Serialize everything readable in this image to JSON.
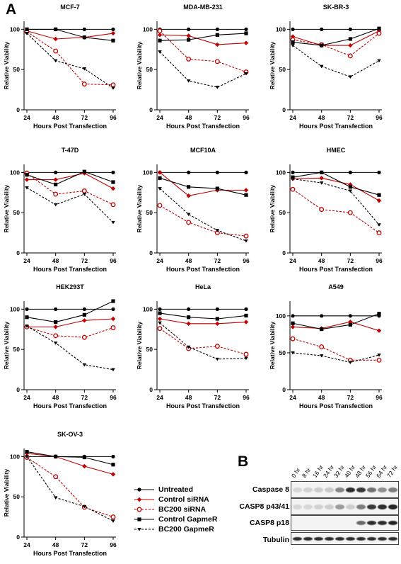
{
  "panel_labels": {
    "a": "A",
    "b": "B"
  },
  "legend": [
    {
      "label": "Untreated",
      "color": "#000000",
      "dash": false,
      "marker": "circle-filled"
    },
    {
      "label": "Control siRNA",
      "color": "#c00000",
      "dash": false,
      "marker": "diamond-filled"
    },
    {
      "label": "BC200 siRNA",
      "color": "#c00000",
      "dash": true,
      "marker": "circle-open"
    },
    {
      "label": "Control GapmeR",
      "color": "#000000",
      "dash": false,
      "marker": "square-filled"
    },
    {
      "label": "BC200 GapmeR",
      "color": "#000000",
      "dash": true,
      "marker": "triangle-down"
    }
  ],
  "chart_data": [
    {
      "type": "line",
      "title": "MCF-7",
      "xlabel": "Hours Post Transfection",
      "ylabel": "Relative  Viability",
      "x": [
        24,
        48,
        72,
        96
      ],
      "ylim": [
        0,
        110
      ],
      "yticks": [
        0,
        50,
        100
      ],
      "series": [
        {
          "name": "Untreated",
          "values": [
            100,
            100,
            100,
            100
          ]
        },
        {
          "name": "Control siRNA",
          "values": [
            98,
            88,
            90,
            95
          ]
        },
        {
          "name": "BC200 siRNA",
          "values": [
            97,
            73,
            32,
            31
          ]
        },
        {
          "name": "Control GapmeR",
          "values": [
            100,
            100,
            90,
            86
          ]
        },
        {
          "name": "BC200 GapmeR",
          "values": [
            95,
            61,
            51,
            27
          ]
        }
      ]
    },
    {
      "type": "line",
      "title": "MDA-MB-231",
      "xlabel": "Hours Post Transfection",
      "ylabel": "Relative  Viability",
      "x": [
        24,
        48,
        72,
        96
      ],
      "ylim": [
        0,
        110
      ],
      "yticks": [
        0,
        50,
        100
      ],
      "series": [
        {
          "name": "Untreated",
          "values": [
            100,
            100,
            100,
            100
          ]
        },
        {
          "name": "Control siRNA",
          "values": [
            93,
            92,
            81,
            83
          ]
        },
        {
          "name": "BC200 siRNA",
          "values": [
            98,
            63,
            60,
            47
          ]
        },
        {
          "name": "Control GapmeR",
          "values": [
            86,
            87,
            93,
            95
          ]
        },
        {
          "name": "BC200 GapmeR",
          "values": [
            72,
            36,
            28,
            45
          ]
        }
      ]
    },
    {
      "type": "line",
      "title": "SK-BR-3",
      "xlabel": "Hours Post Transfection",
      "ylabel": "Relative  Viability",
      "x": [
        24,
        48,
        72,
        96
      ],
      "ylim": [
        0,
        110
      ],
      "yticks": [
        0,
        50,
        100
      ],
      "series": [
        {
          "name": "Untreated",
          "values": [
            100,
            100,
            100,
            100
          ]
        },
        {
          "name": "Control siRNA",
          "values": [
            91,
            80,
            80,
            98
          ]
        },
        {
          "name": "BC200 siRNA",
          "values": [
            87,
            81,
            67,
            95
          ]
        },
        {
          "name": "Control GapmeR",
          "values": [
            84,
            80,
            88,
            101
          ]
        },
        {
          "name": "BC200 GapmeR",
          "values": [
            80,
            54,
            41,
            61
          ]
        }
      ]
    },
    {
      "type": "line",
      "title": "T-47D",
      "xlabel": "Hours Post Transfection",
      "ylabel": "Relative  Viability",
      "x": [
        24,
        48,
        72,
        96
      ],
      "ylim": [
        0,
        110
      ],
      "yticks": [
        0,
        50,
        100
      ],
      "series": [
        {
          "name": "Untreated",
          "values": [
            100,
            100,
            100,
            100
          ]
        },
        {
          "name": "Control siRNA",
          "values": [
            91,
            91,
            99,
            80
          ]
        },
        {
          "name": "BC200 siRNA",
          "values": [
            99,
            73,
            77,
            60
          ]
        },
        {
          "name": "Control GapmeR",
          "values": [
            97,
            85,
            101,
            88
          ]
        },
        {
          "name": "BC200 GapmeR",
          "values": [
            81,
            60,
            73,
            38
          ]
        }
      ]
    },
    {
      "type": "line",
      "title": "MCF10A",
      "xlabel": "Hours Post Transfection",
      "ylabel": "Relative  Viability",
      "x": [
        24,
        48,
        72,
        96
      ],
      "ylim": [
        0,
        110
      ],
      "yticks": [
        0,
        50,
        100
      ],
      "series": [
        {
          "name": "Untreated",
          "values": [
            100,
            100,
            100,
            100
          ]
        },
        {
          "name": "Control siRNA",
          "values": [
            100,
            71,
            78,
            78
          ]
        },
        {
          "name": "BC200 siRNA",
          "values": [
            59,
            38,
            25,
            21
          ]
        },
        {
          "name": "Control GapmeR",
          "values": [
            93,
            82,
            80,
            72
          ]
        },
        {
          "name": "BC200 GapmeR",
          "values": [
            80,
            48,
            28,
            15
          ]
        }
      ]
    },
    {
      "type": "line",
      "title": "HMEC",
      "xlabel": "Hours Post Transfection",
      "ylabel": "Relative  Viability",
      "x": [
        24,
        48,
        72,
        96
      ],
      "ylim": [
        0,
        110
      ],
      "yticks": [
        0,
        50,
        100
      ],
      "series": [
        {
          "name": "Untreated",
          "values": [
            100,
            100,
            100,
            100
          ]
        },
        {
          "name": "Control siRNA",
          "values": [
            92,
            93,
            85,
            65
          ]
        },
        {
          "name": "BC200 siRNA",
          "values": [
            79,
            54,
            50,
            25
          ]
        },
        {
          "name": "Control GapmeR",
          "values": [
            94,
            100,
            82,
            72
          ]
        },
        {
          "name": "BC200 GapmeR",
          "values": [
            92,
            87,
            77,
            35
          ]
        }
      ]
    },
    {
      "type": "line",
      "title": "HEK293T",
      "xlabel": "Hours Post Transfection",
      "ylabel": "Relative  Viability",
      "x": [
        24,
        48,
        72,
        96
      ],
      "ylim": [
        0,
        110
      ],
      "yticks": [
        0,
        50,
        100
      ],
      "series": [
        {
          "name": "Untreated",
          "values": [
            100,
            100,
            100,
            100
          ]
        },
        {
          "name": "Control siRNA",
          "values": [
            78,
            78,
            86,
            88
          ]
        },
        {
          "name": "BC200 siRNA",
          "values": [
            78,
            67,
            65,
            77
          ]
        },
        {
          "name": "Control GapmeR",
          "values": [
            90,
            84,
            93,
            110
          ]
        },
        {
          "name": "BC200 GapmeR",
          "values": [
            79,
            58,
            31,
            25
          ]
        }
      ]
    },
    {
      "type": "line",
      "title": "HeLa",
      "xlabel": "Hours Post Transfection",
      "ylabel": "Relative  Viability",
      "x": [
        24,
        48,
        72,
        96
      ],
      "ylim": [
        0,
        110
      ],
      "yticks": [
        0,
        50,
        100
      ],
      "series": [
        {
          "name": "Untreated",
          "values": [
            100,
            100,
            100,
            100
          ]
        },
        {
          "name": "Control siRNA",
          "values": [
            88,
            82,
            82,
            84
          ]
        },
        {
          "name": "BC200 siRNA",
          "values": [
            76,
            51,
            54,
            44
          ]
        },
        {
          "name": "Control GapmeR",
          "values": [
            95,
            90,
            88,
            92
          ]
        },
        {
          "name": "BC200 GapmeR",
          "values": [
            83,
            53,
            38,
            39
          ]
        }
      ]
    },
    {
      "type": "line",
      "title": "A549",
      "xlabel": "Hours Post Transfection",
      "ylabel": "Relative  Viability",
      "x": [
        24,
        48,
        72,
        96
      ],
      "ylim": [
        0,
        120
      ],
      "yticks": [
        0,
        50,
        100
      ],
      "series": [
        {
          "name": "Untreated",
          "values": [
            100,
            100,
            100,
            100
          ]
        },
        {
          "name": "Control siRNA",
          "values": [
            85,
            83,
            92,
            80
          ]
        },
        {
          "name": "BC200 siRNA",
          "values": [
            69,
            58,
            40,
            40
          ]
        },
        {
          "name": "Control GapmeR",
          "values": [
            90,
            82,
            88,
            103
          ]
        },
        {
          "name": "BC200 GapmeR",
          "values": [
            50,
            46,
            37,
            47
          ]
        }
      ]
    },
    {
      "type": "line",
      "title": "SK-OV-3",
      "xlabel": "Hours Post Transfection",
      "ylabel": "Relative  Viability",
      "x": [
        24,
        48,
        72,
        96
      ],
      "ylim": [
        0,
        110
      ],
      "yticks": [
        0,
        50,
        100
      ],
      "series": [
        {
          "name": "Untreated",
          "values": [
            100,
            100,
            100,
            100
          ]
        },
        {
          "name": "Control siRNA",
          "values": [
            104,
            100,
            88,
            78
          ]
        },
        {
          "name": "BC200 siRNA",
          "values": [
            99,
            75,
            37,
            25
          ]
        },
        {
          "name": "Control GapmeR",
          "values": [
            106,
            100,
            99,
            90
          ]
        },
        {
          "name": "BC200 GapmeR",
          "values": [
            100,
            49,
            38,
            20
          ]
        }
      ]
    }
  ],
  "blot": {
    "lanes": [
      "0 hr",
      "8 hr",
      "16 hr",
      "24 hr",
      "32 hr",
      "40 hr",
      "48 hr",
      "56 hr",
      "64 hr",
      "72 hr"
    ],
    "bands": [
      {
        "label": "Caspase 8",
        "intensity": [
          0.05,
          0.08,
          0.1,
          0.12,
          0.45,
          0.9,
          0.85,
          0.55,
          0.4,
          0.5
        ]
      },
      {
        "label": "CASP8 p43/41",
        "intensity": [
          0.05,
          0.05,
          0.08,
          0.1,
          0.35,
          0.1,
          0.5,
          0.85,
          0.9,
          0.95
        ]
      },
      {
        "label": "CASP8 p18",
        "intensity": [
          0.0,
          0.0,
          0.0,
          0.0,
          0.0,
          0.0,
          0.6,
          0.9,
          0.9,
          0.95
        ]
      },
      {
        "label": "Tubulin",
        "intensity": [
          0.9,
          0.9,
          0.9,
          0.9,
          0.9,
          0.9,
          0.9,
          0.9,
          0.9,
          0.9
        ]
      }
    ]
  }
}
